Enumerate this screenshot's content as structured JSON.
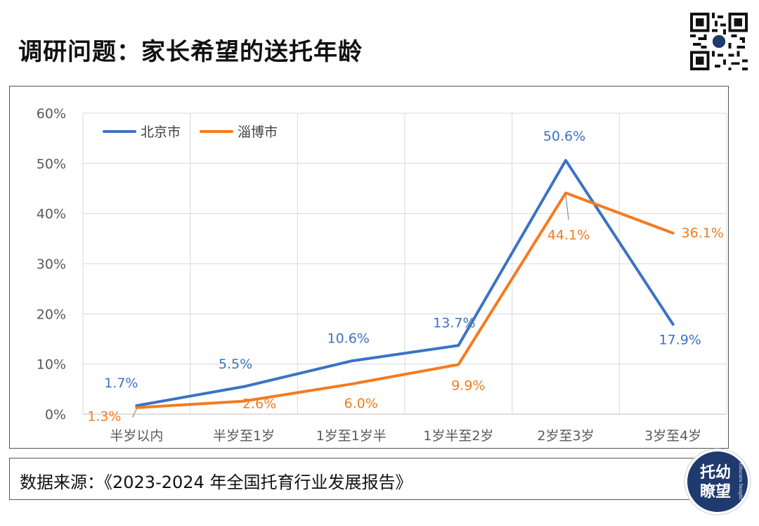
{
  "header": {
    "title": "调研问题：家长希望的送托年龄"
  },
  "footer": {
    "source": "数据来源：《2023-2024 年全国托育行业发展报告》"
  },
  "badge": {
    "line1": "托幼",
    "line2": "瞭望",
    "side_text": "Educare Insight",
    "color": "#1f3a6e"
  },
  "chart_data": {
    "type": "line",
    "categories": [
      "半岁以内",
      "半岁至1岁",
      "1岁至1岁半",
      "1岁半至2岁",
      "2岁至3岁",
      "3岁至4岁"
    ],
    "series": [
      {
        "name": "北京市",
        "color": "#3b73c4",
        "values": [
          1.7,
          5.5,
          10.6,
          13.7,
          50.6,
          17.9
        ],
        "labels": [
          "1.7%",
          "5.5%",
          "10.6%",
          "13.7%",
          "50.6%",
          "17.9%"
        ]
      },
      {
        "name": "淄博市",
        "color": "#f47b20",
        "values": [
          1.3,
          2.6,
          6.0,
          9.9,
          44.1,
          36.1
        ],
        "labels": [
          "1.3%",
          "2.6%",
          "6.0%",
          "9.9%",
          "44.1%",
          "36.1%"
        ]
      }
    ],
    "ylim": [
      0,
      60
    ],
    "yticks": [
      "0%",
      "10%",
      "20%",
      "30%",
      "40%",
      "50%",
      "60%"
    ],
    "grid": true,
    "legend": "top-left"
  }
}
